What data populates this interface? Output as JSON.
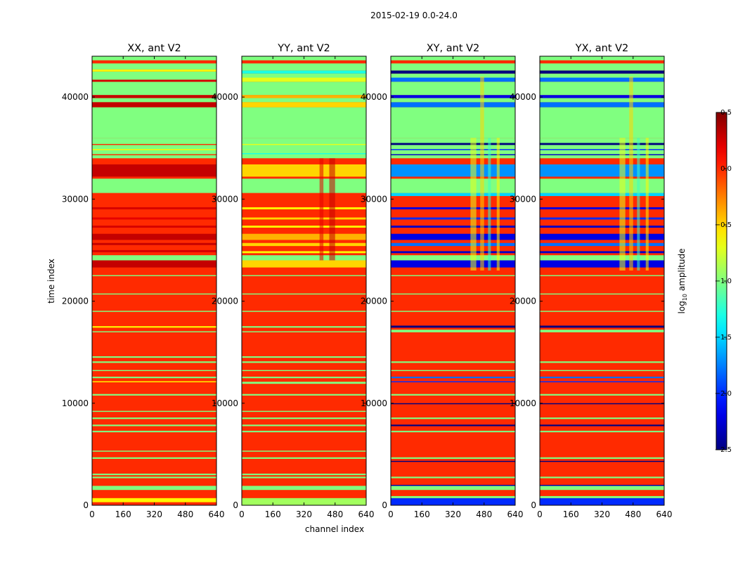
{
  "chart_data": {
    "type": "heatmap",
    "title": "2015-02-19 0.0-24.0",
    "xlabel": "channel index",
    "ylabel": "time index",
    "xlim": [
      0,
      640
    ],
    "ylim": [
      0,
      44000
    ],
    "xticks": [
      "0",
      "160",
      "320",
      "480",
      "640"
    ],
    "yticks": [
      "0",
      "10000",
      "20000",
      "30000",
      "40000"
    ],
    "colorbar": {
      "label_prefix": "log",
      "label_sub": "10",
      "label_suffix": " amplitude",
      "range": [
        -2.5,
        0.5
      ],
      "ticks": [
        "0.5",
        "0.0",
        "−0.5",
        "−1.0",
        "−1.5",
        "−2.0",
        "−2.5"
      ],
      "colormap": "jet"
    },
    "panels": [
      {
        "title": "XX, ant V2",
        "background": 0.0,
        "bands": [
          [
            300,
            700,
            -0.6
          ],
          [
            1500,
            1900,
            -1
          ],
          [
            2650,
            2800,
            -1
          ],
          [
            2950,
            3100,
            -1
          ],
          [
            4550,
            4700,
            -1
          ],
          [
            5250,
            5350,
            -1
          ],
          [
            7150,
            7300,
            -1
          ],
          [
            7750,
            7900,
            -1
          ],
          [
            8450,
            8600,
            -1
          ],
          [
            9150,
            9250,
            -1
          ],
          [
            10750,
            10900,
            -1
          ],
          [
            12050,
            12150,
            -0.6
          ],
          [
            12450,
            12600,
            -1
          ],
          [
            13150,
            13250,
            -1
          ],
          [
            13950,
            14100,
            -1
          ],
          [
            14450,
            14600,
            -1
          ],
          [
            16950,
            17050,
            -1
          ],
          [
            17400,
            17550,
            -0.6
          ],
          [
            18950,
            19050,
            -1
          ],
          [
            20650,
            20750,
            -1
          ],
          [
            22450,
            22550,
            -1
          ],
          [
            23300,
            24000,
            0.3
          ],
          [
            24000,
            24500,
            -1
          ],
          [
            24800,
            25000,
            0.25
          ],
          [
            25500,
            25700,
            0.3
          ],
          [
            26000,
            26600,
            0.3
          ],
          [
            27200,
            27400,
            0.25
          ],
          [
            28000,
            28200,
            0.2
          ],
          [
            29000,
            29200,
            0.25
          ],
          [
            30600,
            32000,
            -1
          ],
          [
            32200,
            33400,
            0.3
          ],
          [
            33600,
            33800,
            0.0
          ],
          [
            34000,
            36000,
            -1
          ],
          [
            34300,
            34400,
            0.0
          ],
          [
            34800,
            34900,
            -0.6
          ],
          [
            35300,
            35400,
            0.0
          ],
          [
            36000,
            39000,
            -1
          ],
          [
            39000,
            39500,
            0.3
          ],
          [
            39500,
            39900,
            -1
          ],
          [
            39900,
            40200,
            0.3
          ],
          [
            40200,
            41500,
            -1
          ],
          [
            41500,
            41700,
            0.25
          ],
          [
            41700,
            42500,
            -1
          ],
          [
            42500,
            42700,
            -0.6
          ],
          [
            42700,
            43300,
            -1
          ],
          [
            43300,
            43600,
            0.0
          ],
          [
            43600,
            44000,
            -1
          ]
        ],
        "patches": []
      },
      {
        "title": "YY, ant V2",
        "background": 0.0,
        "bands": [
          [
            0,
            700,
            -0.9
          ],
          [
            1500,
            1900,
            -1
          ],
          [
            2650,
            2800,
            -1
          ],
          [
            2950,
            3100,
            -1
          ],
          [
            4550,
            4700,
            -1
          ],
          [
            5250,
            5350,
            -1
          ],
          [
            7150,
            7300,
            -1
          ],
          [
            7750,
            7900,
            -1
          ],
          [
            8450,
            8600,
            -1
          ],
          [
            9150,
            9250,
            -1
          ],
          [
            10750,
            10900,
            -1
          ],
          [
            11900,
            12100,
            -1
          ],
          [
            12450,
            12600,
            -1
          ],
          [
            13150,
            13250,
            -1
          ],
          [
            13950,
            14100,
            -1
          ],
          [
            14450,
            14600,
            -1
          ],
          [
            16950,
            17050,
            -1
          ],
          [
            17400,
            17550,
            -1
          ],
          [
            18950,
            19050,
            -1
          ],
          [
            20650,
            20750,
            -1
          ],
          [
            22450,
            22550,
            -1
          ],
          [
            23300,
            24000,
            -0.5
          ],
          [
            24000,
            24500,
            -1
          ],
          [
            24700,
            24900,
            -0.6
          ],
          [
            25400,
            25700,
            -0.5
          ],
          [
            26000,
            26600,
            -0.4
          ],
          [
            27200,
            27400,
            -0.6
          ],
          [
            28000,
            28200,
            -0.5
          ],
          [
            29000,
            29200,
            -0.6
          ],
          [
            30600,
            32000,
            -1
          ],
          [
            32200,
            33400,
            -0.5
          ],
          [
            33600,
            33800,
            0.0
          ],
          [
            34000,
            36000,
            -1
          ],
          [
            34400,
            34500,
            -1.3
          ],
          [
            35300,
            35400,
            -0.7
          ],
          [
            36000,
            39000,
            -1
          ],
          [
            39000,
            39500,
            -0.5
          ],
          [
            39500,
            39900,
            -1
          ],
          [
            39900,
            40200,
            -0.4
          ],
          [
            40200,
            41500,
            -1
          ],
          [
            41500,
            41900,
            -0.7
          ],
          [
            41900,
            42300,
            -1
          ],
          [
            42300,
            42600,
            -1.3
          ],
          [
            42600,
            43300,
            -1
          ],
          [
            43300,
            43600,
            0.0
          ],
          [
            43600,
            44000,
            -1
          ]
        ],
        "patches": [
          [
            400,
            420,
            24000,
            34000,
            0.2
          ],
          [
            450,
            480,
            24000,
            34000,
            0.3
          ]
        ]
      },
      {
        "title": "XY, ant V2",
        "background": 0.0,
        "bands": [
          [
            0,
            700,
            -2.0
          ],
          [
            700,
            900,
            -1
          ],
          [
            1500,
            1900,
            -1
          ],
          [
            1900,
            2000,
            -2.4
          ],
          [
            2650,
            2800,
            -1
          ],
          [
            4250,
            4350,
            -2.5
          ],
          [
            4550,
            4700,
            -1
          ],
          [
            7150,
            7300,
            -1
          ],
          [
            7750,
            7900,
            -2.5
          ],
          [
            8450,
            8600,
            -1
          ],
          [
            9900,
            10000,
            -2.5
          ],
          [
            10750,
            10900,
            -1
          ],
          [
            12050,
            12150,
            -2.0
          ],
          [
            12450,
            12600,
            -1.8
          ],
          [
            13150,
            13250,
            -1
          ],
          [
            13950,
            14100,
            -1
          ],
          [
            16950,
            17200,
            -1
          ],
          [
            17400,
            17600,
            -2.5
          ],
          [
            18950,
            19050,
            -1
          ],
          [
            20650,
            20750,
            -1
          ],
          [
            22450,
            22550,
            -1
          ],
          [
            23300,
            24000,
            -2.2
          ],
          [
            24000,
            24500,
            -1
          ],
          [
            24700,
            24900,
            -2.3
          ],
          [
            25400,
            25700,
            -1.8
          ],
          [
            26000,
            26600,
            -2.2
          ],
          [
            27200,
            27400,
            -2.3
          ],
          [
            28000,
            28200,
            -2.0
          ],
          [
            29000,
            29200,
            -2.2
          ],
          [
            30300,
            30600,
            -1.5
          ],
          [
            30600,
            32000,
            -1
          ],
          [
            32200,
            33400,
            -1.7
          ],
          [
            33600,
            33800,
            0.0
          ],
          [
            34000,
            36000,
            -1
          ],
          [
            34300,
            34400,
            -2.3
          ],
          [
            34800,
            34900,
            -2.0
          ],
          [
            35300,
            35500,
            -2.5
          ],
          [
            36000,
            39000,
            -1
          ],
          [
            39000,
            39500,
            -1.8
          ],
          [
            39500,
            39900,
            -1
          ],
          [
            39900,
            40200,
            -2.2
          ],
          [
            40200,
            41500,
            -1
          ],
          [
            41500,
            41900,
            -1.8
          ],
          [
            41900,
            42300,
            -1
          ],
          [
            42300,
            42600,
            -2.5
          ],
          [
            42600,
            43300,
            -1
          ],
          [
            43300,
            43600,
            0.0
          ],
          [
            43600,
            44000,
            -1
          ]
        ],
        "patches": [
          [
            410,
            440,
            23000,
            36000,
            -0.7
          ],
          [
            460,
            480,
            23000,
            42000,
            -0.5
          ],
          [
            500,
            515,
            23000,
            36000,
            -1.2
          ],
          [
            545,
            560,
            23000,
            36000,
            -0.6
          ]
        ]
      },
      {
        "title": "YX, ant V2",
        "background": 0.0,
        "bands": [
          [
            0,
            700,
            -2.0
          ],
          [
            700,
            900,
            -1
          ],
          [
            1500,
            1900,
            -1
          ],
          [
            1900,
            2000,
            -2.4
          ],
          [
            2650,
            2800,
            -1
          ],
          [
            4250,
            4350,
            -2.5
          ],
          [
            4550,
            4700,
            -1
          ],
          [
            7150,
            7300,
            -1
          ],
          [
            7750,
            7900,
            -2.5
          ],
          [
            8450,
            8600,
            -1
          ],
          [
            9900,
            10000,
            -2.5
          ],
          [
            10750,
            10900,
            -1
          ],
          [
            12050,
            12150,
            -2.0
          ],
          [
            12450,
            12600,
            -1.8
          ],
          [
            13150,
            13250,
            -1
          ],
          [
            13950,
            14100,
            -1
          ],
          [
            16950,
            17200,
            -1
          ],
          [
            17400,
            17600,
            -2.5
          ],
          [
            18950,
            19050,
            -1
          ],
          [
            20650,
            20750,
            -1
          ],
          [
            22450,
            22550,
            -1
          ],
          [
            23300,
            24000,
            -2.2
          ],
          [
            24000,
            24500,
            -1
          ],
          [
            24700,
            24900,
            -2.3
          ],
          [
            25400,
            25700,
            -1.8
          ],
          [
            26000,
            26600,
            -2.2
          ],
          [
            27200,
            27400,
            -2.3
          ],
          [
            28000,
            28200,
            -2.0
          ],
          [
            29000,
            29200,
            -2.2
          ],
          [
            30300,
            30600,
            -1.5
          ],
          [
            30600,
            32000,
            -1
          ],
          [
            32200,
            33400,
            -1.7
          ],
          [
            33600,
            33800,
            0.0
          ],
          [
            34000,
            36000,
            -1
          ],
          [
            34300,
            34400,
            -2.3
          ],
          [
            34800,
            34900,
            -2.0
          ],
          [
            35300,
            35500,
            -2.5
          ],
          [
            36000,
            39000,
            -1
          ],
          [
            39000,
            39500,
            -1.8
          ],
          [
            39500,
            39900,
            -1
          ],
          [
            39900,
            40200,
            -2.2
          ],
          [
            40200,
            41500,
            -1
          ],
          [
            41500,
            41900,
            -1.8
          ],
          [
            41900,
            42300,
            -1
          ],
          [
            42300,
            42600,
            -2.5
          ],
          [
            42600,
            43300,
            -1
          ],
          [
            43300,
            43600,
            0.0
          ],
          [
            43600,
            44000,
            -1
          ]
        ],
        "patches": [
          [
            410,
            440,
            23000,
            36000,
            -0.7
          ],
          [
            460,
            480,
            23000,
            42000,
            -0.5
          ],
          [
            500,
            515,
            23000,
            36000,
            -1.2
          ],
          [
            545,
            560,
            23000,
            36000,
            -0.6
          ]
        ]
      }
    ]
  }
}
